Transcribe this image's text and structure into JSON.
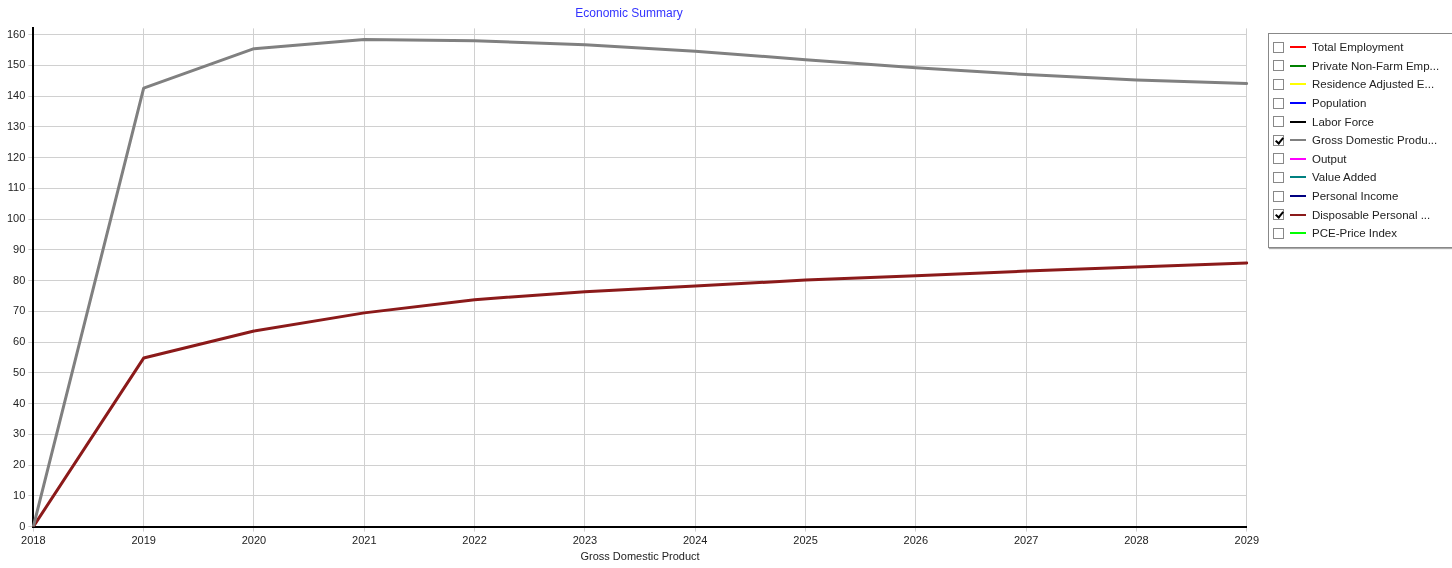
{
  "chart_data": {
    "type": "line",
    "title": "Economic Summary",
    "xlabel": "Gross Domestic Product",
    "categories": [
      "2018",
      "2019",
      "2020",
      "2021",
      "2022",
      "2023",
      "2024",
      "2025",
      "2026",
      "2027",
      "2028",
      "2029"
    ],
    "ylim": [
      0,
      162
    ],
    "yticks": [
      0,
      10,
      20,
      30,
      40,
      50,
      60,
      70,
      80,
      90,
      100,
      110,
      120,
      130,
      140,
      150,
      160
    ],
    "grid": true,
    "legend": "right",
    "marker": "none",
    "line_style": "solid",
    "series": [
      {
        "name": "Total Employment",
        "color": "#ff0000",
        "values": [
          null,
          null,
          null,
          null,
          null,
          null,
          null,
          null,
          null,
          null,
          null,
          null
        ]
      },
      {
        "name": "Private Non-Farm Emp...",
        "color": "#008000",
        "values": [
          null,
          null,
          null,
          null,
          null,
          null,
          null,
          null,
          null,
          null,
          null,
          null
        ]
      },
      {
        "name": "Residence Adjusted E...",
        "color": "#ffff00",
        "values": [
          null,
          null,
          null,
          null,
          null,
          null,
          null,
          null,
          null,
          null,
          null,
          null
        ]
      },
      {
        "name": "Population",
        "color": "#0000ff",
        "values": [
          null,
          null,
          null,
          null,
          null,
          null,
          null,
          null,
          null,
          null,
          null,
          null
        ]
      },
      {
        "name": "Labor Force",
        "color": "#000000",
        "values": [
          null,
          null,
          null,
          null,
          null,
          null,
          null,
          null,
          null,
          null,
          null,
          null
        ]
      },
      {
        "name": "Gross Domestic Produ...",
        "color": "#808080",
        "values": [
          0,
          142.6,
          155.4,
          158.4,
          158,
          156.7,
          154.6,
          151.8,
          149.2,
          147,
          145.2,
          144.1
        ]
      },
      {
        "name": "Output",
        "color": "#ff00ff",
        "values": [
          null,
          null,
          null,
          null,
          null,
          null,
          null,
          null,
          null,
          null,
          null,
          null
        ]
      },
      {
        "name": "Value Added",
        "color": "#008080",
        "values": [
          null,
          null,
          null,
          null,
          null,
          null,
          null,
          null,
          null,
          null,
          null,
          null
        ]
      },
      {
        "name": "Personal Income",
        "color": "#000080",
        "values": [
          null,
          null,
          null,
          null,
          null,
          null,
          null,
          null,
          null,
          null,
          null,
          null
        ]
      },
      {
        "name": "Disposable Personal ...",
        "color": "#8b1a1a",
        "values": [
          0,
          54.8,
          63.6,
          69.5,
          73.8,
          76.4,
          78.2,
          80.2,
          81.6,
          83.1,
          84.4,
          85.7
        ]
      },
      {
        "name": "PCE-Price Index",
        "color": "#00ff00",
        "values": [
          null,
          null,
          null,
          null,
          null,
          null,
          null,
          null,
          null,
          null,
          null,
          null
        ]
      }
    ]
  }
}
